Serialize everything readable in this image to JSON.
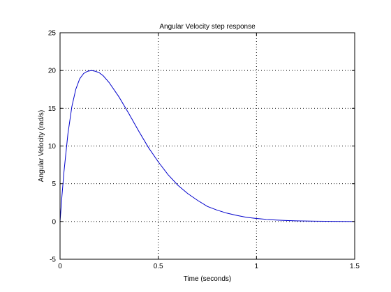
{
  "chart_data": {
    "type": "line",
    "title": "Angular Velocity step response",
    "xlabel": "Time (seconds)",
    "ylabel": "Angular Velocity (rad/s)",
    "xlim": [
      0,
      1.5
    ],
    "ylim": [
      -5,
      25
    ],
    "xticks": [
      0,
      0.5,
      1,
      1.5
    ],
    "xtick_labels": [
      "0",
      "0.5",
      "1",
      "1.5"
    ],
    "yticks": [
      -5,
      0,
      5,
      10,
      15,
      20,
      25
    ],
    "ytick_labels": [
      "-5",
      "0",
      "5",
      "10",
      "15",
      "20",
      "25"
    ],
    "grid": true,
    "series": [
      {
        "color": "#0000cc",
        "x": [
          0,
          0.01,
          0.02,
          0.04,
          0.06,
          0.08,
          0.1,
          0.12,
          0.14,
          0.16,
          0.18,
          0.2,
          0.22,
          0.25,
          0.3,
          0.35,
          0.4,
          0.45,
          0.5,
          0.55,
          0.6,
          0.65,
          0.7,
          0.75,
          0.8,
          0.85,
          0.9,
          0.95,
          1.0,
          1.05,
          1.1,
          1.15,
          1.2,
          1.25,
          1.3,
          1.35,
          1.4,
          1.45,
          1.5
        ],
        "y": [
          0,
          3.5,
          6.6,
          11.6,
          15.2,
          17.5,
          18.9,
          19.6,
          19.9,
          20.0,
          19.9,
          19.7,
          19.3,
          18.4,
          16.5,
          14.3,
          12.0,
          9.8,
          7.9,
          6.2,
          4.8,
          3.7,
          2.8,
          2.0,
          1.5,
          1.1,
          0.8,
          0.55,
          0.4,
          0.28,
          0.19,
          0.13,
          0.09,
          0.06,
          0.04,
          0.03,
          0.02,
          0.01,
          0.0
        ]
      }
    ]
  }
}
